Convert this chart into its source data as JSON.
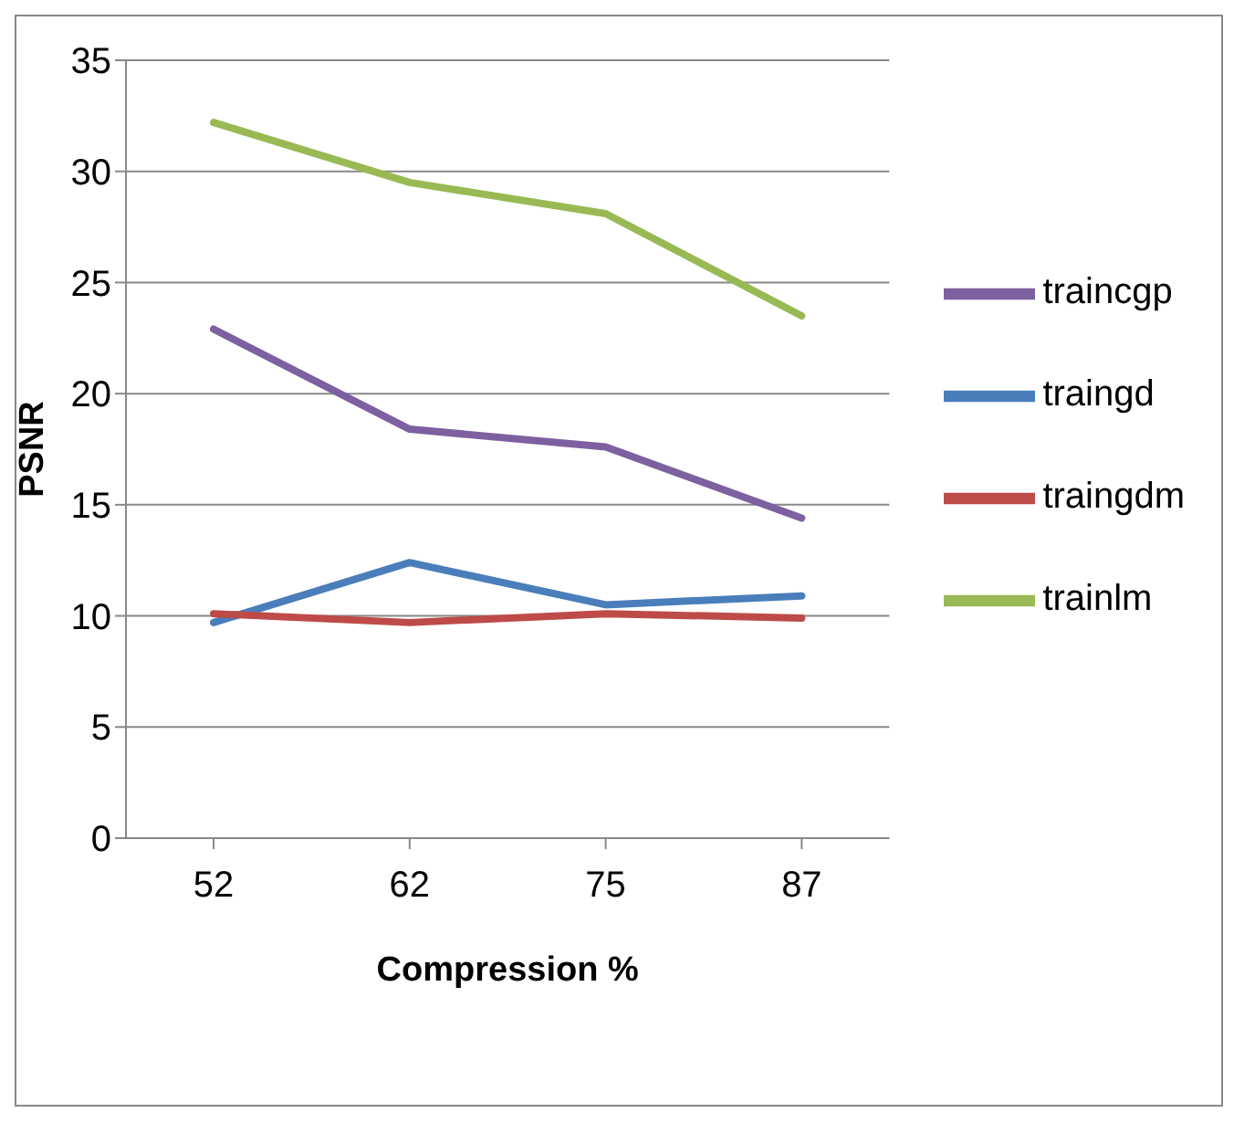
{
  "chart_data": {
    "type": "line",
    "xlabel": "Compression %",
    "ylabel": "PSNR",
    "categories": [
      "52",
      "62",
      "75",
      "87"
    ],
    "series": [
      {
        "name": "traingd",
        "color": "#4a7ebb",
        "values": [
          9.7,
          12.4,
          10.5,
          10.9
        ]
      },
      {
        "name": "traingdm",
        "color": "#be4b48",
        "values": [
          10.1,
          9.7,
          10.1,
          9.9
        ]
      },
      {
        "name": "trainlm",
        "color": "#98b954",
        "values": [
          32.2,
          29.5,
          28.1,
          23.5
        ]
      },
      {
        "name": "traincgp",
        "color": "#7d60a0",
        "values": [
          22.9,
          18.4,
          17.6,
          14.4
        ]
      }
    ],
    "ylim": [
      0,
      35
    ],
    "yticks": [
      0,
      5,
      10,
      15,
      20,
      25,
      30,
      35
    ],
    "grid": "y",
    "legend": "right",
    "marker": "none",
    "line_style": "solid"
  }
}
